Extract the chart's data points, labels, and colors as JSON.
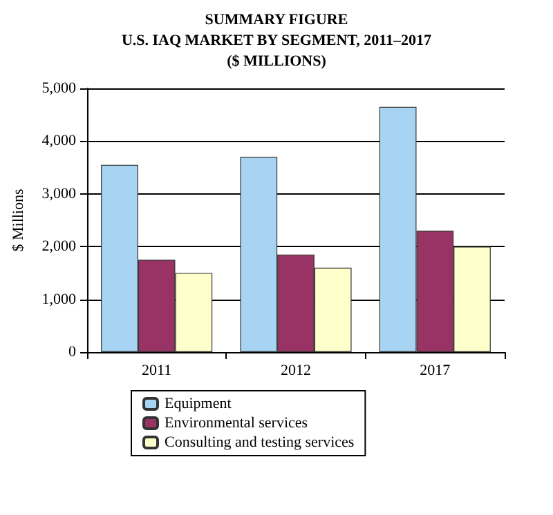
{
  "chart_data": {
    "type": "bar",
    "title": "SUMMARY FIGURE\nU.S. IAQ MARKET BY SEGMENT, 2011–2017\n($ MILLIONS)",
    "ylabel": "$ Millions",
    "categories": [
      "2011",
      "2012",
      "2017"
    ],
    "series": [
      {
        "name": "Equipment",
        "color": "#a6d4f2",
        "values": [
          3550,
          3700,
          4650
        ]
      },
      {
        "name": "Environmental services",
        "color": "#993366",
        "values": [
          1750,
          1850,
          2300
        ]
      },
      {
        "name": "Consulting and testing services",
        "color": "#ffffcc",
        "values": [
          1500,
          1600,
          2000
        ]
      }
    ],
    "ylim": [
      0,
      5000
    ],
    "yticks": [
      0,
      {
        "value": 1000,
        "label": "1,000"
      },
      {
        "value": 2000,
        "label": "2,000"
      },
      {
        "value": 3000,
        "label": "3,000"
      },
      {
        "value": 4000,
        "label": "4,000"
      },
      {
        "value": 5000,
        "label": "5,000"
      }
    ],
    "grid": "y",
    "legend": "bottom"
  }
}
